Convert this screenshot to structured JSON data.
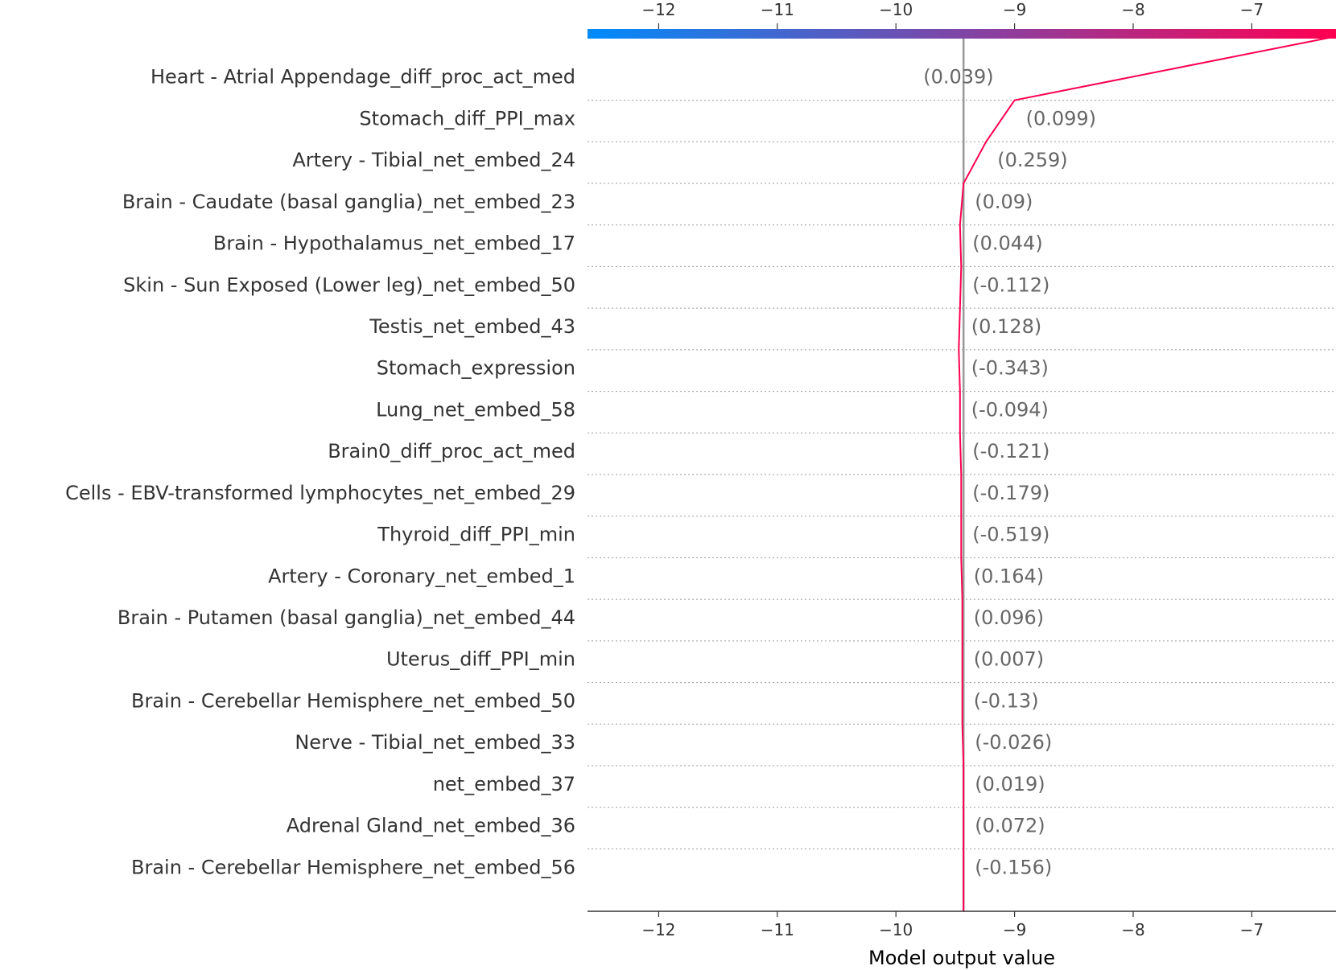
{
  "chart_data": {
    "type": "line",
    "title": "",
    "xlabel": "Model output value",
    "ylabel": "",
    "xlim": [
      -12.6,
      -6.29
    ],
    "xticks": [
      -12,
      -11,
      -10,
      -9,
      -8,
      -7
    ],
    "xtick_labels": [
      "−12",
      "−11",
      "−10",
      "−9",
      "−8",
      "−7"
    ],
    "base_value": -9.43,
    "colorbar": {
      "from": "#008bfb",
      "to": "#ff0051"
    },
    "line_color": "#ff0051",
    "features": [
      {
        "name": "Heart - Atrial Appendage_diff_proc_act_med",
        "value_label": "(0.039)",
        "output": -9.0
      },
      {
        "name": "Stomach_diff_PPI_max",
        "value_label": "(0.099)",
        "output": -9.24
      },
      {
        "name": "Artery - Tibial_net_embed_24",
        "value_label": "(0.259)",
        "output": -9.43
      },
      {
        "name": "Brain - Caudate (basal ganglia)_net_embed_23",
        "value_label": "(0.09)",
        "output": -9.46
      },
      {
        "name": "Brain - Hypothalamus_net_embed_17",
        "value_label": "(0.044)",
        "output": -9.45
      },
      {
        "name": "Skin - Sun Exposed (Lower leg)_net_embed_50",
        "value_label": "(-0.112)",
        "output": -9.46
      },
      {
        "name": "Testis_net_embed_43",
        "value_label": "(0.128)",
        "output": -9.47
      },
      {
        "name": "Stomach_expression",
        "value_label": "(-0.343)",
        "output": -9.46
      },
      {
        "name": "Lung_net_embed_58",
        "value_label": "(-0.094)",
        "output": -9.46
      },
      {
        "name": "Brain0_diff_proc_act_med",
        "value_label": "(-0.121)",
        "output": -9.45
      },
      {
        "name": "Cells - EBV-transformed lymphocytes_net_embed_29",
        "value_label": "(-0.179)",
        "output": -9.45
      },
      {
        "name": "Thyroid_diff_PPI_min",
        "value_label": "(-0.519)",
        "output": -9.45
      },
      {
        "name": "Artery - Coronary_net_embed_1",
        "value_label": "(0.164)",
        "output": -9.44
      },
      {
        "name": "Brain - Putamen (basal ganglia)_net_embed_44",
        "value_label": "(0.096)",
        "output": -9.44
      },
      {
        "name": "Uterus_diff_PPI_min",
        "value_label": "(0.007)",
        "output": -9.44
      },
      {
        "name": "Brain - Cerebellar Hemisphere_net_embed_50",
        "value_label": "(-0.13)",
        "output": -9.44
      },
      {
        "name": "Nerve - Tibial_net_embed_33",
        "value_label": "(-0.026)",
        "output": -9.43
      },
      {
        "name": "net_embed_37",
        "value_label": "(0.019)",
        "output": -9.43
      },
      {
        "name": "Adrenal Gland_net_embed_36",
        "value_label": "(0.072)",
        "output": -9.43
      },
      {
        "name": "Brain - Cerebellar Hemisphere_net_embed_56",
        "value_label": "(-0.156)",
        "output": -9.43
      }
    ],
    "final_output": -6.35
  }
}
